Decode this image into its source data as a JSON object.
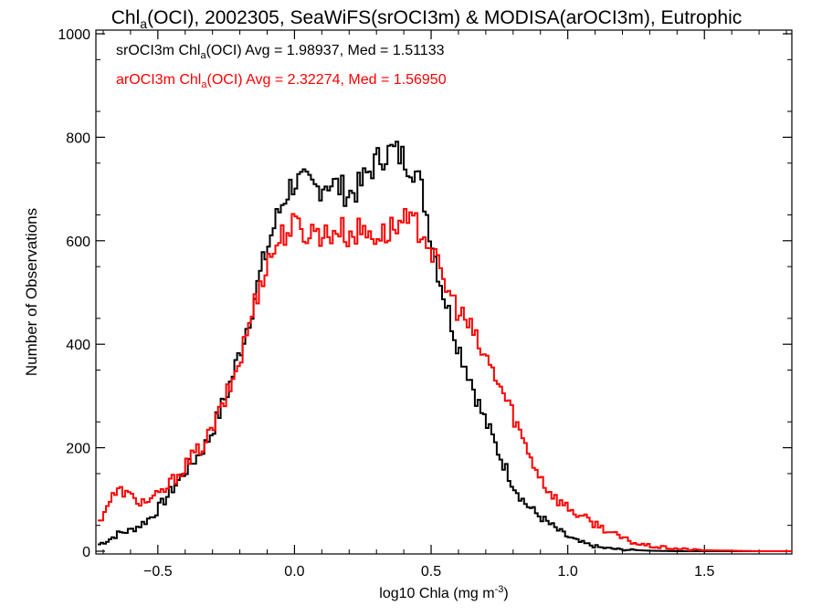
{
  "chart_data": {
    "type": "histogram-step",
    "title": {
      "prefix": "Chl",
      "sub": "a",
      "rest": "(OCI), 2002305, SeaWiFS(srOCI3m) & MODISA(arOCI3m), Eutrophic"
    },
    "xlabel": {
      "text": "log10 Chla (mg m",
      "sup": "-3",
      "close": ")"
    },
    "ylabel": "Number of Observations",
    "xlim": [
      -0.72,
      1.82
    ],
    "ylim": [
      0,
      1000
    ],
    "xticks": [
      -0.5,
      0.0,
      0.5,
      1.0,
      1.5
    ],
    "xtick_labels": [
      "−0.5",
      "0.0",
      "0.5",
      "1.0",
      "1.5"
    ],
    "yticks": [
      0,
      200,
      400,
      600,
      800,
      1000
    ],
    "ytick_labels": [
      "0",
      "200",
      "400",
      "600",
      "800",
      "1000"
    ],
    "legend_position": "top-left",
    "series": [
      {
        "name": "srOCI3m",
        "legend": {
          "pre": "srOCI3m Chl",
          "sub": "a",
          "post": "(OCI) Avg = 1.98937, Med = 1.51133"
        },
        "color": "#000000",
        "points": [
          [
            -0.72,
            12
          ],
          [
            -0.68,
            22
          ],
          [
            -0.64,
            35
          ],
          [
            -0.6,
            40
          ],
          [
            -0.56,
            52
          ],
          [
            -0.52,
            68
          ],
          [
            -0.48,
            95
          ],
          [
            -0.44,
            125
          ],
          [
            -0.4,
            155
          ],
          [
            -0.36,
            180
          ],
          [
            -0.32,
            210
          ],
          [
            -0.28,
            260
          ],
          [
            -0.24,
            315
          ],
          [
            -0.2,
            385
          ],
          [
            -0.16,
            460
          ],
          [
            -0.12,
            545
          ],
          [
            -0.08,
            620
          ],
          [
            -0.04,
            680
          ],
          [
            -0.02,
            700
          ],
          [
            0.0,
            715
          ],
          [
            0.04,
            710
          ],
          [
            0.08,
            700
          ],
          [
            0.12,
            715
          ],
          [
            0.16,
            705
          ],
          [
            0.2,
            690
          ],
          [
            0.24,
            705
          ],
          [
            0.28,
            740
          ],
          [
            0.32,
            765
          ],
          [
            0.36,
            775
          ],
          [
            0.4,
            760
          ],
          [
            0.44,
            740
          ],
          [
            0.47,
            690
          ],
          [
            0.5,
            610
          ],
          [
            0.53,
            530
          ],
          [
            0.56,
            470
          ],
          [
            0.6,
            395
          ],
          [
            0.64,
            340
          ],
          [
            0.68,
            275
          ],
          [
            0.72,
            225
          ],
          [
            0.76,
            175
          ],
          [
            0.8,
            130
          ],
          [
            0.84,
            95
          ],
          [
            0.88,
            75
          ],
          [
            0.92,
            58
          ],
          [
            0.96,
            42
          ],
          [
            1.0,
            28
          ],
          [
            1.04,
            18
          ],
          [
            1.08,
            12
          ],
          [
            1.12,
            7
          ],
          [
            1.16,
            5
          ],
          [
            1.2,
            3
          ],
          [
            1.25,
            2
          ],
          [
            1.3,
            1
          ],
          [
            1.4,
            0
          ],
          [
            1.82,
            0
          ]
        ]
      },
      {
        "name": "arOCI3m",
        "legend": {
          "pre": "arOCI3m Chl",
          "sub": "a",
          "post": "(OCI) Avg = 2.32274, Med = 1.56950"
        },
        "color": "#ff0000",
        "points": [
          [
            -0.72,
            50
          ],
          [
            -0.69,
            85
          ],
          [
            -0.66,
            110
          ],
          [
            -0.63,
            118
          ],
          [
            -0.6,
            105
          ],
          [
            -0.56,
            95
          ],
          [
            -0.52,
            100
          ],
          [
            -0.48,
            115
          ],
          [
            -0.44,
            140
          ],
          [
            -0.4,
            165
          ],
          [
            -0.36,
            190
          ],
          [
            -0.32,
            215
          ],
          [
            -0.28,
            260
          ],
          [
            -0.24,
            310
          ],
          [
            -0.2,
            370
          ],
          [
            -0.16,
            450
          ],
          [
            -0.12,
            530
          ],
          [
            -0.08,
            580
          ],
          [
            -0.04,
            615
          ],
          [
            0.0,
            630
          ],
          [
            0.04,
            615
          ],
          [
            0.08,
            620
          ],
          [
            0.12,
            610
          ],
          [
            0.16,
            625
          ],
          [
            0.2,
            610
          ],
          [
            0.24,
            620
          ],
          [
            0.28,
            615
          ],
          [
            0.32,
            610
          ],
          [
            0.36,
            625
          ],
          [
            0.4,
            635
          ],
          [
            0.44,
            630
          ],
          [
            0.47,
            620
          ],
          [
            0.5,
            585
          ],
          [
            0.53,
            540
          ],
          [
            0.56,
            505
          ],
          [
            0.6,
            465
          ],
          [
            0.64,
            435
          ],
          [
            0.68,
            390
          ],
          [
            0.72,
            355
          ],
          [
            0.76,
            310
          ],
          [
            0.8,
            265
          ],
          [
            0.84,
            210
          ],
          [
            0.88,
            165
          ],
          [
            0.92,
            125
          ],
          [
            0.96,
            100
          ],
          [
            1.0,
            85
          ],
          [
            1.04,
            70
          ],
          [
            1.08,
            58
          ],
          [
            1.12,
            48
          ],
          [
            1.16,
            35
          ],
          [
            1.2,
            25
          ],
          [
            1.25,
            15
          ],
          [
            1.3,
            10
          ],
          [
            1.35,
            7
          ],
          [
            1.4,
            5
          ],
          [
            1.45,
            3
          ],
          [
            1.5,
            2
          ],
          [
            1.6,
            1
          ],
          [
            1.7,
            0
          ],
          [
            1.82,
            0
          ]
        ]
      }
    ]
  }
}
